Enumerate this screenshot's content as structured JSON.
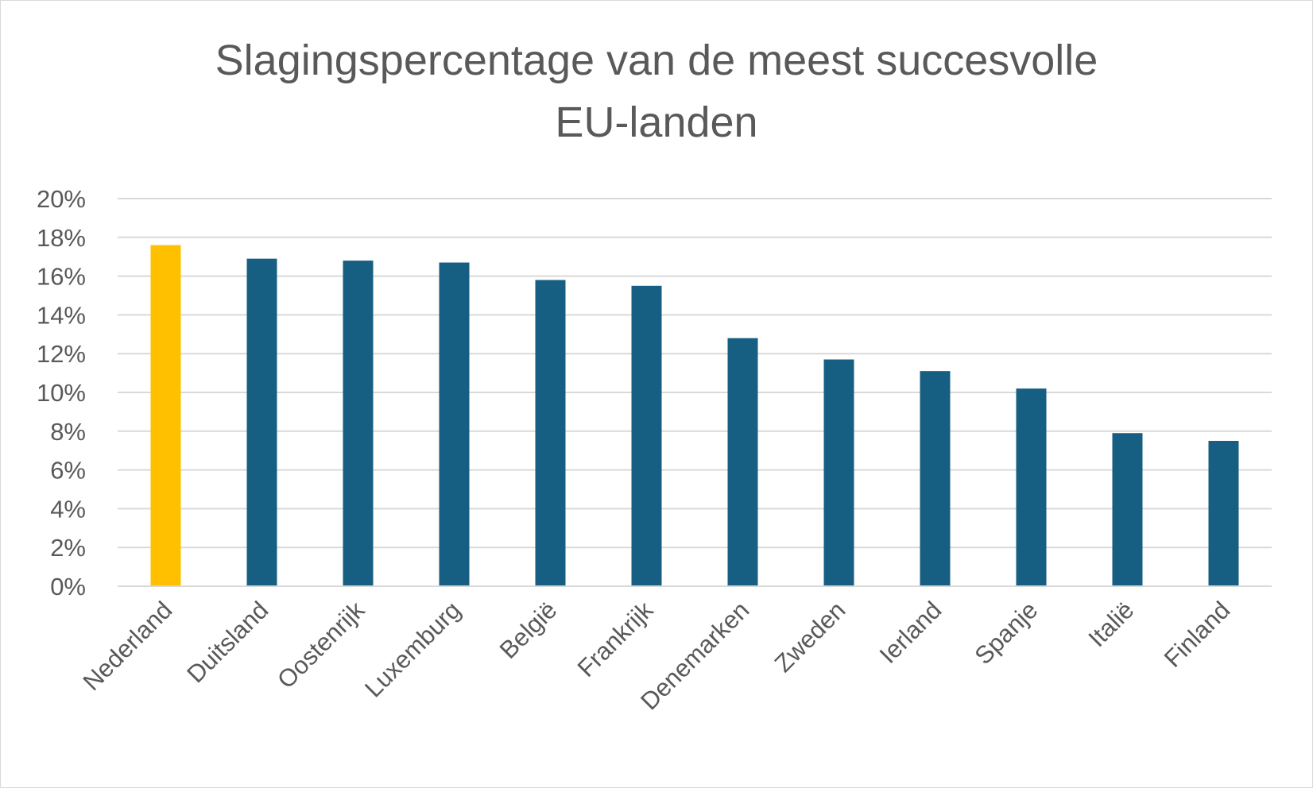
{
  "chart_data": {
    "type": "bar",
    "title": [
      "Slagingspercentage van de meest succesvolle",
      "EU-landen"
    ],
    "xlabel": "",
    "ylabel": "",
    "ylim": [
      0,
      20
    ],
    "yticks": [
      0,
      2,
      4,
      6,
      8,
      10,
      12,
      14,
      16,
      18,
      20
    ],
    "ytick_format": "percent",
    "grid": true,
    "legend": "none",
    "categories": [
      "Nederland",
      "Duitsland",
      "Oostenrijk",
      "Luxemburg",
      "België",
      "Frankrijk",
      "Denemarken",
      "Zweden",
      "Ierland",
      "Spanje",
      "Italië",
      "Finland"
    ],
    "values": [
      17.6,
      16.9,
      16.8,
      16.7,
      15.8,
      15.5,
      12.8,
      11.7,
      11.1,
      10.2,
      7.9,
      7.5
    ],
    "colors": {
      "default": "#175F82",
      "highlight": "#FFC000",
      "grid": "#D9D9D9",
      "text": "#595959"
    },
    "highlight_index": 0
  }
}
